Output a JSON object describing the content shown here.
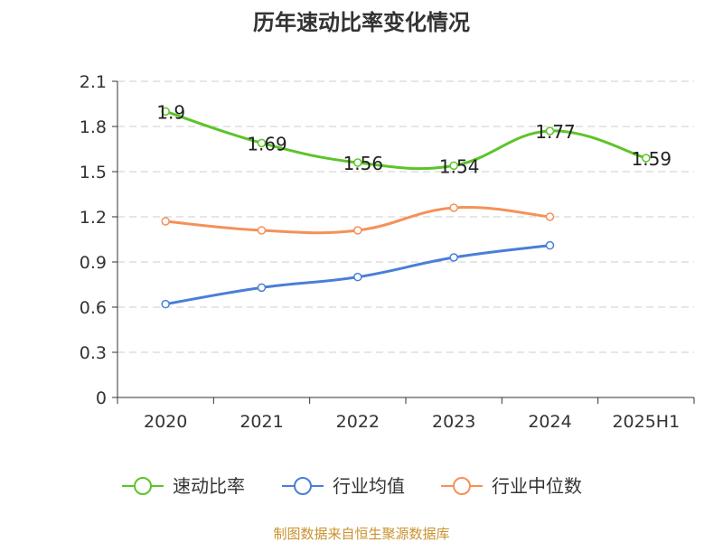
{
  "chart_data": {
    "type": "line",
    "title": "历年速动比率变化情况",
    "categories": [
      "2020",
      "2021",
      "2022",
      "2023",
      "2024",
      "2025H1"
    ],
    "ylim": [
      0,
      2.1
    ],
    "yticks": [
      "0",
      "0.3",
      "0.6",
      "0.9",
      "1.2",
      "1.5",
      "1.8",
      "2.1"
    ],
    "grid": true,
    "legend_position": "bottom",
    "series": [
      {
        "name": "速动比率",
        "color": "#5cc42a",
        "values": [
          1.9,
          1.69,
          1.56,
          1.54,
          1.77,
          1.59
        ],
        "labels": [
          "1.9",
          "1.69",
          "1.56",
          "1.54",
          "1.77",
          "1.59"
        ]
      },
      {
        "name": "行业均值",
        "color": "#4a7ed8",
        "values": [
          0.62,
          0.73,
          0.8,
          0.93,
          1.01,
          null
        ]
      },
      {
        "name": "行业中位数",
        "color": "#f5915a",
        "values": [
          1.17,
          1.11,
          1.11,
          1.26,
          1.2,
          null
        ]
      }
    ]
  },
  "source": "制图数据来自恒生聚源数据库"
}
